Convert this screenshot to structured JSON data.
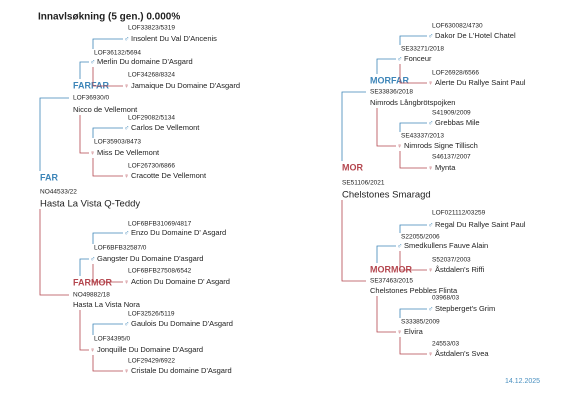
{
  "header": {
    "title": "Innavlsøkning (5 gen.) 0.000%",
    "date": "14.12.2025"
  },
  "nodes": [
    {
      "label": "FAR",
      "reg": "NO44533/22",
      "name": "Hasta La Vista Q-Teddy"
    },
    {
      "label": "FARFAR",
      "reg": "LOF36930/0",
      "name": "Nicco de Vellemont"
    },
    {
      "reg": "LOF36132/5694",
      "symbol": "♂",
      "name": "Merlin Du domaine D'Asgard"
    },
    {
      "reg": "LOF33823/5319",
      "symbol": "♂",
      "name": "Insolent Du Val D'Ancenis"
    },
    {
      "reg": "LOF34268/8324",
      "symbol": "♀",
      "name": "Jamaique Du Domaine D'Asgard"
    },
    {
      "reg": "LOF35903/8473",
      "symbol": "♀",
      "name": "Miss De Vellemont"
    },
    {
      "reg": "LOF29082/5134",
      "symbol": "♂",
      "name": "Carlos De Vellemont"
    },
    {
      "reg": "LOF26730/6866",
      "symbol": "♀",
      "name": "Cracotte De Vellemont"
    },
    {
      "label": "FARMOR",
      "reg": "NO49882/18",
      "name": "Hasta La Vista Nora"
    },
    {
      "reg": "LOF6BFB32587/0",
      "symbol": "♂",
      "name": "Gangster Du Domaine D'asgard"
    },
    {
      "reg": "LOF6BFB31069/4817",
      "symbol": "♂",
      "name": "Enzo Du Domaine D' Asgard"
    },
    {
      "reg": "LOF6BFB27508/6542",
      "symbol": "♀",
      "name": "Action Du Domaine D' Asgard"
    },
    {
      "reg": "LOF34395/0",
      "symbol": "♀",
      "name": "Jonquille Du Domaine D'Asgard"
    },
    {
      "reg": "LOF32526/5119",
      "symbol": "♂",
      "name": "Gaulois Du Domaine D'Asgard"
    },
    {
      "reg": "LOF29429/6922",
      "symbol": "♀",
      "name": "Cristale Du domaine D'Asgard"
    },
    {
      "label": "MOR",
      "reg": "SE51106/2021",
      "name": "Chelstones Smaragd"
    },
    {
      "label": "MORFAR",
      "reg": "SE33836/2018",
      "name": "Nimrods Långbrötspojken"
    },
    {
      "reg": "SE33271/2018",
      "symbol": "♂",
      "name": "Fonceur"
    },
    {
      "reg": "LOF630082/4730",
      "symbol": "♂",
      "name": "Dakor De L'Hotel Chatel"
    },
    {
      "reg": "LOF26928/6566",
      "symbol": "♀",
      "name": "Alerte Du Rallye Saint Paul"
    },
    {
      "reg": "SE43337/2013",
      "symbol": "♀",
      "name": "Nimrods Signe Tillisch"
    },
    {
      "reg": "S41909/2009",
      "symbol": "♂",
      "name": "Grebbas Mile"
    },
    {
      "reg": "S46137/2007",
      "symbol": "♀",
      "name": "Mynta"
    },
    {
      "label": "MORMOR",
      "reg": "SE37463/2015",
      "name": "Chelstones Pebbles Flinta"
    },
    {
      "reg": "S22055/2006",
      "symbol": "♂",
      "name": "Smedkullens Fauve Alain"
    },
    {
      "reg": "LOF021112/03259",
      "symbol": "♂",
      "name": "Regal Du Rallye Saint Paul"
    },
    {
      "reg": "S52037/2003",
      "symbol": "♀",
      "name": "Åstdalen's Riffi"
    },
    {
      "reg": "S33385/2009",
      "symbol": "♀",
      "name": "Elvira"
    },
    {
      "reg": "03968/03",
      "symbol": "♂",
      "name": "Stepberget's Grim"
    },
    {
      "reg": "24553/03",
      "symbol": "♀",
      "name": "Åstdalen's Svea"
    }
  ]
}
